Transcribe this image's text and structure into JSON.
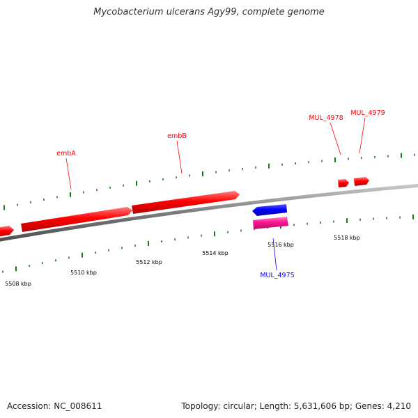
{
  "title": "Mycobacterium ulcerans Agy99, complete genome",
  "footer": {
    "accession": "Accession: NC_008611",
    "summary": "Topology: circular; Length: 5,631,606 bp; Genes: 4,210"
  },
  "colors": {
    "forward_gene": "#ff0000",
    "reverse_gene": "#0000ff",
    "rna_gene": "#ff1493",
    "backbone": "#808080",
    "tick": "#1a7a1a"
  },
  "scale_labels": [
    "5508 kbp",
    "5510 kbp",
    "5512 kbp",
    "5514 kbp",
    "5516 kbp",
    "5518 kbp"
  ],
  "gene_labels": [
    {
      "name": "embA",
      "strand": "forward"
    },
    {
      "name": "embB",
      "strand": "forward"
    },
    {
      "name": "MUL_4978",
      "strand": "forward"
    },
    {
      "name": "MUL_4979",
      "strand": "forward"
    },
    {
      "name": "MUL_4975",
      "strand": "reverse"
    }
  ]
}
